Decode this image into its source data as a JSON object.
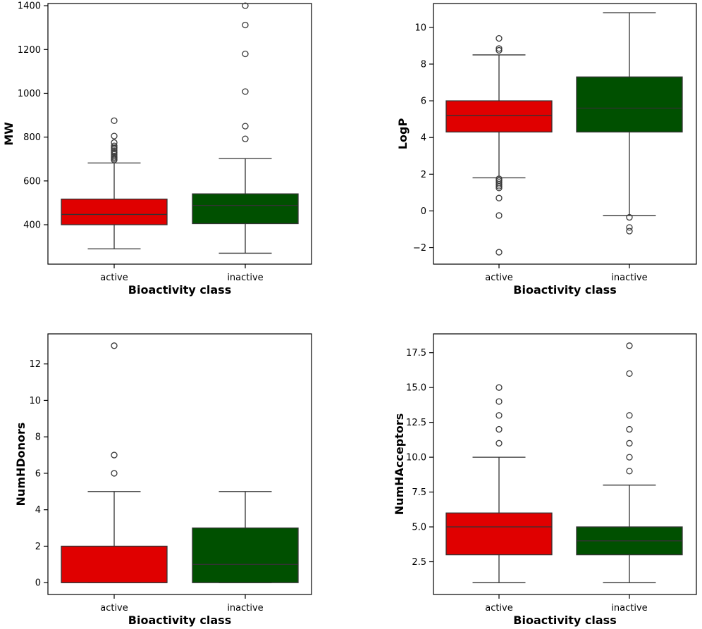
{
  "colors": {
    "active": "#e00000",
    "inactive": "#005000",
    "line": "#333333",
    "frame": "#000000"
  },
  "chart_data": [
    {
      "type": "box",
      "name": "mw",
      "title": "",
      "xlabel": "Bioactivity class",
      "ylabel": "MW",
      "categories": [
        "active",
        "inactive"
      ],
      "ylim": [
        220,
        1410
      ],
      "yticks": [
        400,
        600,
        800,
        1000,
        1200,
        1400
      ],
      "ytick_labels": [
        "400",
        "600",
        "800",
        "1000",
        "1200",
        "1400"
      ],
      "boxes": [
        {
          "category": "active",
          "color": "#e00000",
          "whislo": 290,
          "q1": 400,
          "med": 447,
          "q3": 517,
          "whishi": 682,
          "fliers": [
            696,
            702,
            708,
            714,
            722,
            730,
            738,
            746,
            752,
            760,
            775,
            805,
            875
          ]
        },
        {
          "category": "inactive",
          "color": "#005000",
          "whislo": 270,
          "q1": 405,
          "med": 488,
          "q3": 541,
          "whishi": 702,
          "fliers": [
            792,
            850,
            1008,
            1180,
            1312,
            1400
          ]
        }
      ]
    },
    {
      "type": "box",
      "name": "logp",
      "title": "",
      "xlabel": "Bioactivity class",
      "ylabel": "LogP",
      "categories": [
        "active",
        "inactive"
      ],
      "ylim": [
        -2.9,
        11.3
      ],
      "yticks": [
        -2,
        0,
        2,
        4,
        6,
        8,
        10
      ],
      "ytick_labels": [
        "−2",
        "0",
        "2",
        "4",
        "6",
        "8",
        "10"
      ],
      "boxes": [
        {
          "category": "active",
          "color": "#e00000",
          "whislo": 1.8,
          "q1": 4.3,
          "med": 5.2,
          "q3": 6.0,
          "whishi": 8.5,
          "fliers": [
            1.75,
            1.65,
            1.55,
            1.45,
            1.35,
            1.25,
            0.7,
            -0.25,
            -2.25,
            8.75,
            8.85,
            9.4
          ]
        },
        {
          "category": "inactive",
          "color": "#005000",
          "whislo": -0.25,
          "q1": 4.3,
          "med": 5.6,
          "q3": 7.3,
          "whishi": 10.8,
          "fliers": [
            -0.35,
            -0.9,
            -1.1
          ]
        }
      ]
    },
    {
      "type": "box",
      "name": "numhdonors",
      "title": "",
      "xlabel": "Bioactivity class",
      "ylabel": "NumHDonors",
      "categories": [
        "active",
        "inactive"
      ],
      "ylim": [
        -0.65,
        13.65
      ],
      "yticks": [
        0,
        2,
        4,
        6,
        8,
        10,
        12
      ],
      "ytick_labels": [
        "0",
        "2",
        "4",
        "6",
        "8",
        "10",
        "12"
      ],
      "boxes": [
        {
          "category": "active",
          "color": "#e00000",
          "whislo": 0,
          "q1": 0,
          "med": 0,
          "q3": 2,
          "whishi": 5,
          "fliers": [
            6,
            7,
            13
          ]
        },
        {
          "category": "inactive",
          "color": "#005000",
          "whislo": 0,
          "q1": 0,
          "med": 1,
          "q3": 3,
          "whishi": 5,
          "fliers": []
        }
      ]
    },
    {
      "type": "box",
      "name": "numhacceptors",
      "title": "",
      "xlabel": "Bioactivity class",
      "ylabel": "NumHAcceptors",
      "categories": [
        "active",
        "inactive"
      ],
      "ylim": [
        0.15,
        18.85
      ],
      "yticks": [
        2.5,
        5.0,
        7.5,
        10.0,
        12.5,
        15.0,
        17.5
      ],
      "ytick_labels": [
        "2.5",
        "5.0",
        "7.5",
        "10.0",
        "12.5",
        "15.0",
        "17.5"
      ],
      "boxes": [
        {
          "category": "active",
          "color": "#e00000",
          "whislo": 1,
          "q1": 3,
          "med": 5,
          "q3": 6,
          "whishi": 10,
          "fliers": [
            11,
            12,
            13,
            14,
            15
          ]
        },
        {
          "category": "inactive",
          "color": "#005000",
          "whislo": 1,
          "q1": 3,
          "med": 4,
          "q3": 5,
          "whishi": 8,
          "fliers": [
            9,
            10,
            11,
            12,
            13,
            16,
            18
          ]
        }
      ]
    }
  ]
}
